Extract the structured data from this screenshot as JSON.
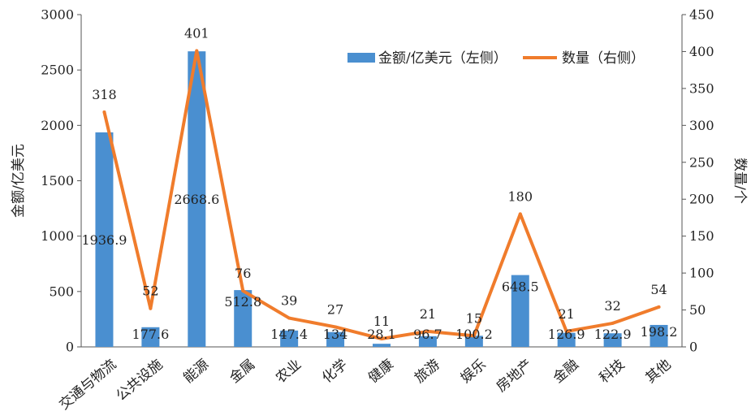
{
  "chart_data": {
    "type": "bar",
    "categories": [
      "交通与物流",
      "公共设施",
      "能源",
      "金属",
      "农业",
      "化学",
      "健康",
      "旅游",
      "娱乐",
      "房地产",
      "金融",
      "科技",
      "其他"
    ],
    "series": [
      {
        "name": "金额/亿美元（左侧）",
        "type": "bar",
        "axis": "left",
        "color": "#4a8fd0",
        "values": [
          1936.9,
          177.6,
          2668.6,
          512.8,
          147.4,
          134,
          28.1,
          96.7,
          100.2,
          648.5,
          126.9,
          122.9,
          198.2
        ],
        "labels": [
          "1936.9",
          "177.6",
          "2668.6",
          "512.8",
          "147.4",
          "134",
          "28.1",
          "96.7",
          "100.2",
          "648.5",
          "126.9",
          "122.9",
          "198.2"
        ]
      },
      {
        "name": "数量（右侧）",
        "type": "line",
        "axis": "right",
        "color": "#f07c2c",
        "values": [
          318,
          52,
          401,
          76,
          39,
          27,
          11,
          21,
          15,
          180,
          21,
          32,
          54
        ],
        "labels": [
          "318",
          "52",
          "401",
          "76",
          "39",
          "27",
          "11",
          "21",
          "15",
          "180",
          "21",
          "32",
          "54"
        ]
      }
    ],
    "ylabel": "金额/亿美元",
    "y2label": "数量/个",
    "ylim": [
      0,
      3000
    ],
    "y2lim": [
      0,
      450
    ],
    "yticks": [
      "0",
      "500",
      "1000",
      "1500",
      "2000",
      "2500",
      "3000"
    ],
    "y2ticks": [
      "0",
      "50",
      "100",
      "150",
      "200",
      "250",
      "300",
      "350",
      "400",
      "450"
    ],
    "grid": false,
    "legend_position": "top-right"
  }
}
